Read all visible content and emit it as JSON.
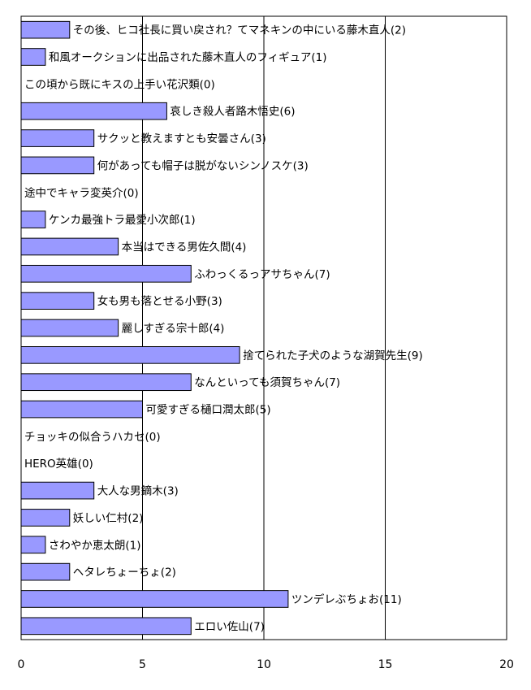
{
  "chart_data": {
    "type": "bar",
    "orientation": "horizontal",
    "title": "",
    "xlabel": "",
    "ylabel": "",
    "xlim": [
      0,
      20
    ],
    "xticks": [
      0,
      5,
      10,
      15,
      20
    ],
    "grid": "vertical",
    "legend": "none",
    "bar_color": "#9999ff",
    "bar_edge_color": "#000000",
    "categories": [
      "その後、ヒコ社長に買い戻され？てマネキンの中にいる藤木直人",
      "和風オークションに出品された藤木直人のフィギュア",
      "この頃から既にキスの上手い花沢類",
      "哀しき殺人者路木悟史",
      "サクッと教えますとも安曇さん",
      "何があっても帽子は脱がないシンノスケ",
      "途中でキャラ変英介",
      "ケンカ最強トラ最愛小次郎",
      "本当はできる男佐久間",
      "ふわっくるっアサちゃん",
      "女も男も落とせる小野",
      "麗しすぎる宗十郎",
      "捨てられた子犬のような湖賀先生",
      "なんといっても須賀ちゃん",
      "可愛すぎる樋口潤太郎",
      "チョッキの似合うハカセ",
      "HERO英雄",
      "大人な男鏑木",
      "妖しい仁村",
      "さわやか恵太朗",
      "ヘタレちょーちょ",
      "ツンデレぶちょお",
      "エロい佐山"
    ],
    "values": [
      2,
      1,
      0,
      6,
      3,
      3,
      0,
      1,
      4,
      7,
      3,
      4,
      9,
      7,
      5,
      0,
      0,
      3,
      2,
      1,
      2,
      11,
      7
    ],
    "data_labels": [
      "その後、ヒコ社長に買い戻され？てマネキンの中にいる藤木直人(2)",
      "和風オークションに出品された藤木直人のフィギュア(1)",
      "この頃から既にキスの上手い花沢類(0)",
      "哀しき殺人者路木悟史(6)",
      "サクッと教えますとも安曇さん(3)",
      "何があっても帽子は脱がないシンノスケ(3)",
      "途中でキャラ変英介(0)",
      "ケンカ最強トラ最愛小次郎(1)",
      "本当はできる男佐久間(4)",
      "ふわっくるっアサちゃん(7)",
      "女も男も落とせる小野(3)",
      "麗しすぎる宗十郎(4)",
      "捨てられた子犬のような湖賀先生(9)",
      "なんといっても須賀ちゃん(7)",
      "可愛すぎる樋口潤太郎(5)",
      "チョッキの似合うハカセ(0)",
      "HERO英雄(0)",
      "大人な男鏑木(3)",
      "妖しい仁村(2)",
      "さわやか恵太朗(1)",
      "ヘタレちょーちょ(2)",
      "ツンデレぶちょお(11)",
      "エロい佐山(7)"
    ]
  }
}
